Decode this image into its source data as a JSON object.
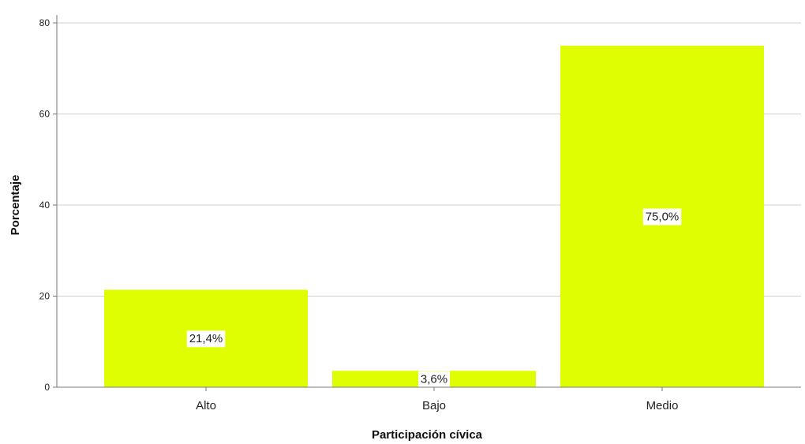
{
  "chart_data": {
    "type": "bar",
    "title": "",
    "xlabel": "Participación cívica",
    "ylabel": "Porcentaje",
    "categories": [
      "Alto",
      "Bajo",
      "Medio"
    ],
    "values": [
      21.4,
      3.6,
      75.0
    ],
    "data_labels": [
      "21,4%",
      "3,6%",
      "75,0%"
    ],
    "yticks": [
      0,
      20,
      40,
      60,
      80
    ],
    "ylim": [
      0,
      80
    ],
    "grid": "horizontal",
    "legend": "none",
    "bar_color": "#dfff00"
  }
}
